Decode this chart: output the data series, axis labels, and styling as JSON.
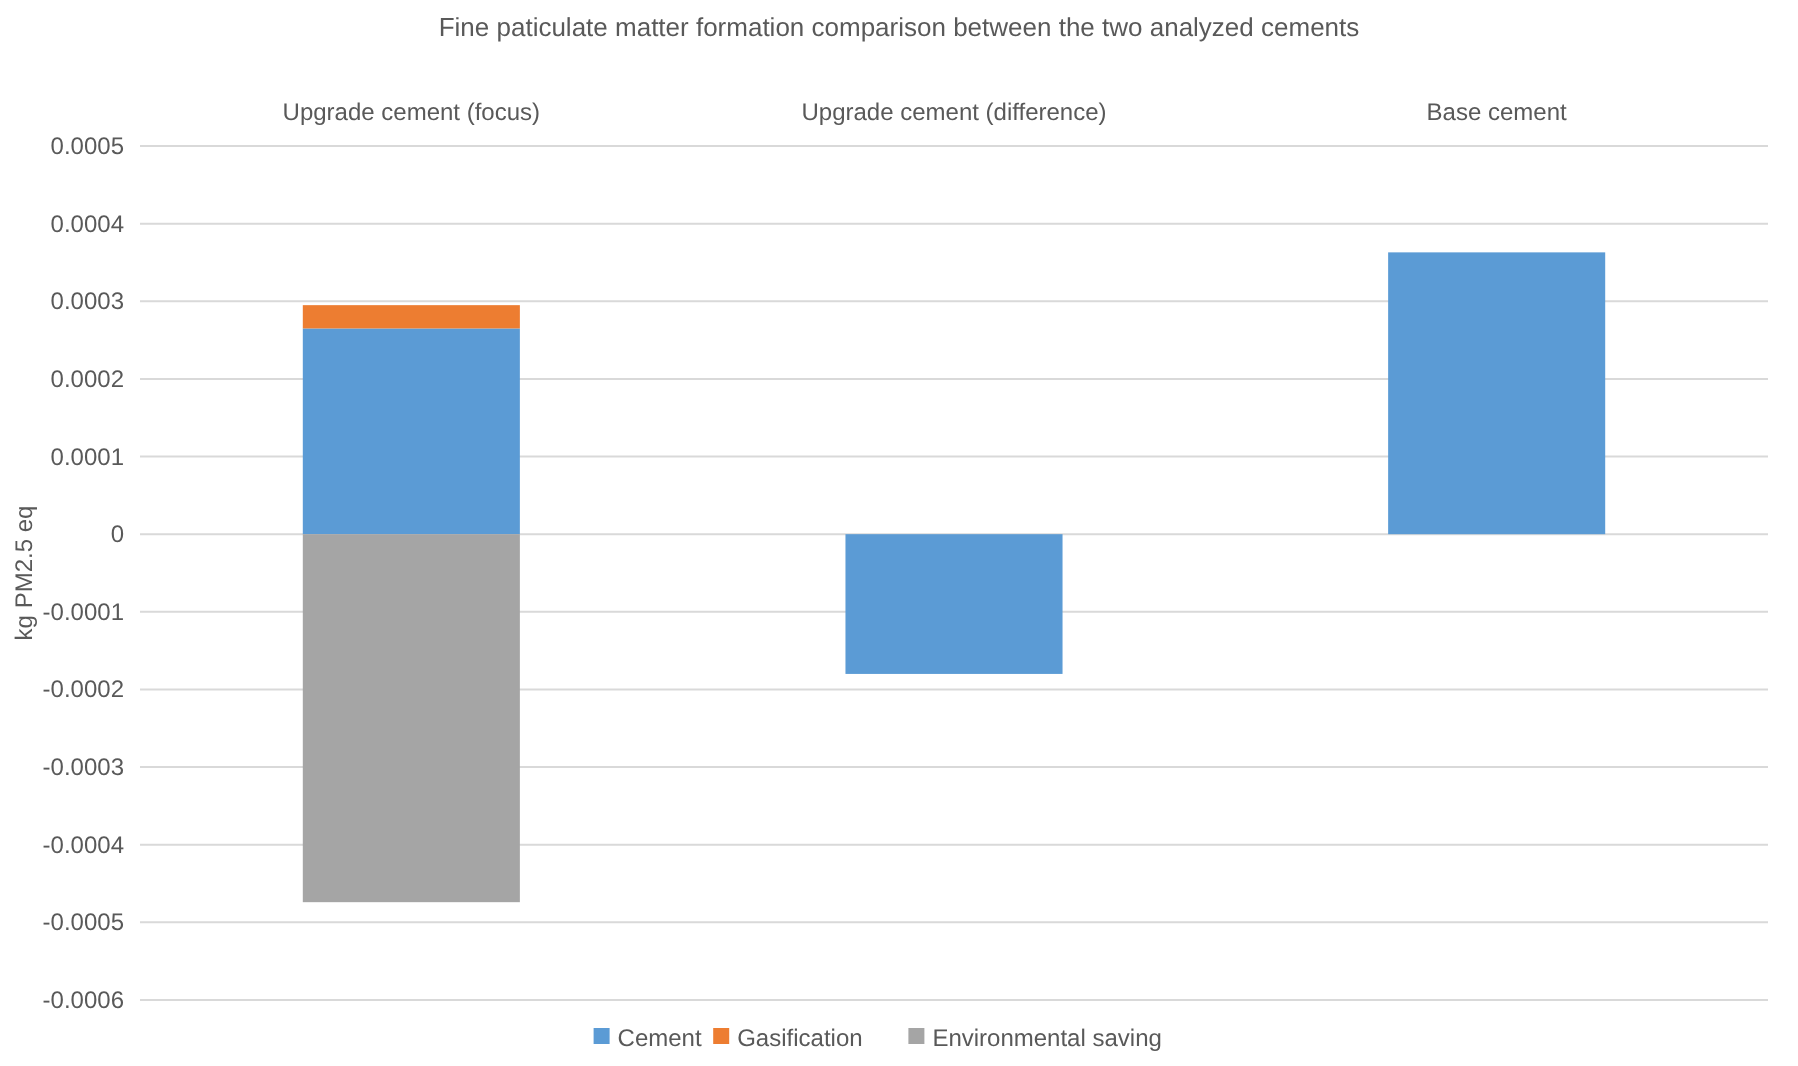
{
  "chart_data": {
    "type": "bar",
    "title": "Fine paticulate matter formation comparison between the two analyzed cements",
    "ylabel": "kg PM2.5 eq",
    "categories": [
      "Upgrade cement (focus)",
      "Upgrade cement (difference)",
      "Base cement"
    ],
    "stacked": true,
    "series": [
      {
        "name": "Cement",
        "color": "#5b9bd5",
        "values": [
          0.000265,
          -0.00018,
          0.000363
        ]
      },
      {
        "name": "Gasification",
        "color": "#ed7d31",
        "values": [
          3e-05,
          null,
          null
        ]
      },
      {
        "name": "Environmental saving",
        "color": "#a5a5a5",
        "values": [
          -0.000474,
          null,
          null
        ]
      }
    ],
    "ylim": [
      -0.0006,
      0.0005
    ],
    "yticks": [
      -0.0006,
      -0.0005,
      -0.0004,
      -0.0003,
      -0.0002,
      -0.0001,
      0,
      0.0001,
      0.0002,
      0.0003,
      0.0004,
      0.0005
    ],
    "grid": "y",
    "legend": "bottom"
  }
}
